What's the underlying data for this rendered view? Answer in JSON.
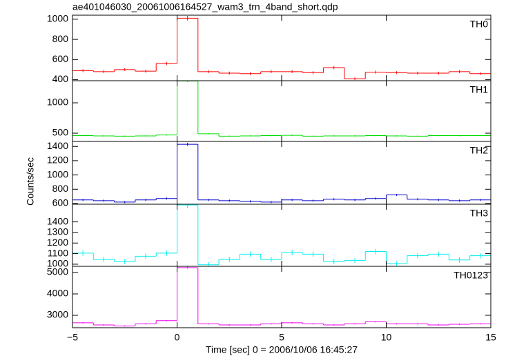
{
  "chart_data": [
    {
      "type": "step",
      "title": "ae401046030_20061006164527_wam3_trn_4band_short.qdp",
      "label": "TH0",
      "color": "#ff0000",
      "x": [
        -4.5,
        -3.5,
        -2.5,
        -1.5,
        -0.5,
        0.5,
        1.5,
        2.5,
        3.5,
        4.5,
        5.5,
        6.5,
        7.5,
        8.5,
        9.5,
        10.5,
        11.5,
        12.5,
        13.5,
        14.5
      ],
      "values": [
        490,
        480,
        500,
        485,
        560,
        1010,
        480,
        465,
        460,
        480,
        480,
        470,
        520,
        410,
        475,
        470,
        465,
        465,
        480,
        460
      ],
      "errors": [
        15,
        15,
        15,
        15,
        16,
        22,
        15,
        15,
        15,
        15,
        15,
        15,
        16,
        14,
        15,
        15,
        15,
        15,
        15,
        15
      ],
      "xlim": [
        -5,
        15
      ],
      "ylim": [
        390,
        1040
      ],
      "yticks": [
        400,
        600,
        800,
        1000
      ]
    },
    {
      "type": "step",
      "label": "TH1",
      "color": "#00dd00",
      "x": [
        -4.5,
        -3.5,
        -2.5,
        -1.5,
        -0.5,
        0.5,
        1.5,
        2.5,
        3.5,
        4.5,
        5.5,
        6.5,
        7.5,
        8.5,
        9.5,
        10.5,
        11.5,
        12.5,
        13.5,
        14.5
      ],
      "values": [
        460,
        455,
        450,
        455,
        470,
        1360,
        490,
        450,
        455,
        460,
        465,
        450,
        455,
        455,
        460,
        455,
        450,
        460,
        460,
        460
      ],
      "errors": [
        10,
        10,
        10,
        10,
        10,
        16,
        10,
        10,
        10,
        10,
        10,
        10,
        10,
        10,
        10,
        10,
        10,
        10,
        10,
        10
      ],
      "xlim": [
        -5,
        15
      ],
      "ylim": [
        364,
        1364
      ],
      "yticks": [
        500,
        1000
      ]
    },
    {
      "type": "step",
      "label": "TH2",
      "color": "#0000cc",
      "ylabel": "Counts/sec",
      "x": [
        -4.5,
        -3.5,
        -2.5,
        -1.5,
        -0.5,
        0.5,
        1.5,
        2.5,
        3.5,
        4.5,
        5.5,
        6.5,
        7.5,
        8.5,
        9.5,
        10.5,
        11.5,
        12.5,
        13.5,
        14.5
      ],
      "values": [
        650,
        640,
        620,
        650,
        670,
        1430,
        650,
        640,
        630,
        620,
        650,
        640,
        660,
        650,
        670,
        720,
        660,
        650,
        640,
        650
      ],
      "errors": [
        15,
        15,
        15,
        15,
        15,
        22,
        15,
        15,
        15,
        15,
        15,
        15,
        15,
        15,
        15,
        15,
        15,
        15,
        15,
        15
      ],
      "xlim": [
        -5,
        15
      ],
      "ylim": [
        590,
        1470
      ],
      "yticks": [
        600,
        800,
        1000,
        1200,
        1400
      ]
    },
    {
      "type": "step",
      "label": "TH3",
      "color": "#00eeee",
      "x": [
        -4.5,
        -3.5,
        -2.5,
        -1.5,
        -0.5,
        0.5,
        1.5,
        2.5,
        3.5,
        4.5,
        5.5,
        6.5,
        7.5,
        8.5,
        9.5,
        10.5,
        11.5,
        12.5,
        13.5,
        14.5
      ],
      "values": [
        1105,
        1045,
        1025,
        1075,
        1105,
        1560,
        995,
        1045,
        1095,
        1045,
        1110,
        1095,
        1025,
        1035,
        1120,
        1005,
        1080,
        1095,
        1040,
        1080
      ],
      "errors": [
        25,
        25,
        25,
        25,
        25,
        30,
        25,
        25,
        25,
        25,
        25,
        25,
        25,
        25,
        25,
        25,
        25,
        25,
        25,
        25
      ],
      "xlim": [
        -5,
        15
      ],
      "ylim": [
        980,
        1567
      ],
      "yticks": [
        1000,
        1100,
        1200,
        1300,
        1400
      ]
    },
    {
      "type": "step",
      "label": "TH0123",
      "color": "#ee00ee",
      "xlabel": "Time [sec] 0 = 2006/10/06 16:45:27",
      "x": [
        -4.5,
        -3.5,
        -2.5,
        -1.5,
        -0.5,
        0.5,
        1.5,
        2.5,
        3.5,
        4.5,
        5.5,
        6.5,
        7.5,
        8.5,
        9.5,
        10.5,
        11.5,
        12.5,
        13.5,
        14.5
      ],
      "values": [
        2650,
        2550,
        2500,
        2600,
        2750,
        5230,
        2600,
        2550,
        2550,
        2600,
        2650,
        2600,
        2550,
        2600,
        2700,
        2600,
        2600,
        2550,
        2580,
        2600
      ],
      "errors": [
        30,
        30,
        30,
        30,
        30,
        45,
        30,
        30,
        30,
        30,
        30,
        30,
        30,
        30,
        30,
        30,
        30,
        30,
        30,
        30
      ],
      "xlim": [
        -5,
        15
      ],
      "ylim": [
        2420,
        5290
      ],
      "yticks": [
        3000,
        4000,
        5000
      ],
      "xticks": [
        {
          "value": -5,
          "label": "−5"
        },
        0,
        5,
        10,
        15
      ]
    }
  ]
}
